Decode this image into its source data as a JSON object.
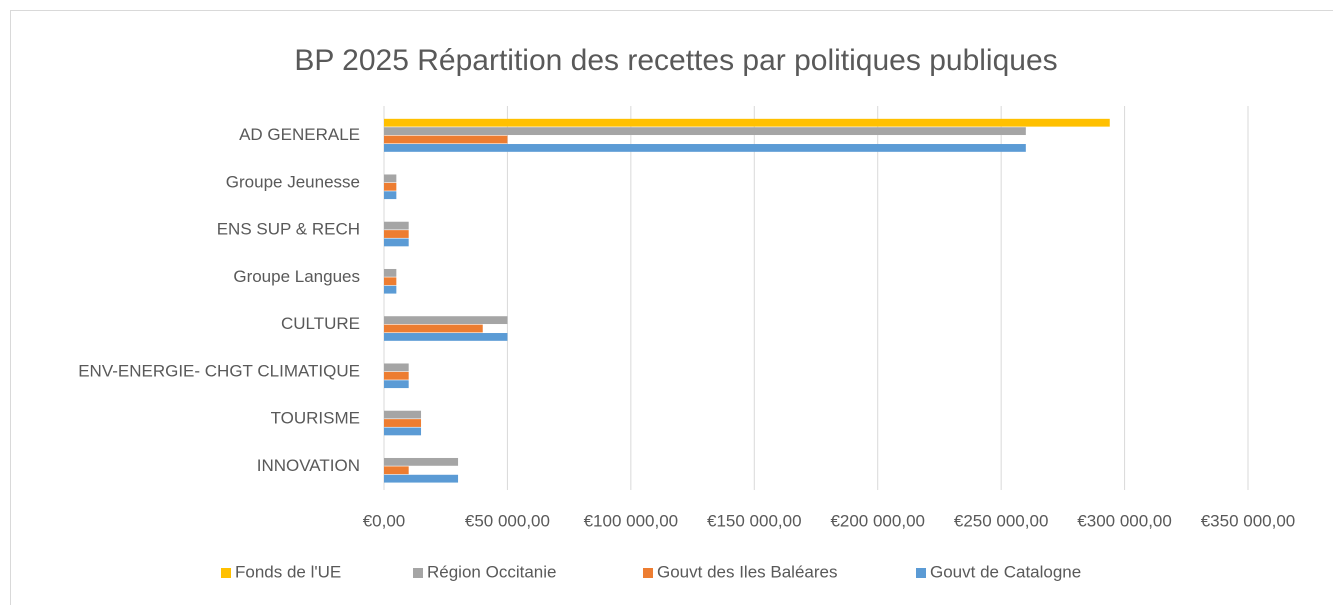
{
  "chart_data": {
    "type": "bar",
    "orientation": "horizontal",
    "title": "BP 2025 Répartition des recettes par politiques publiques",
    "categories": [
      "AD GENERALE",
      "Groupe Jeunesse",
      "ENS SUP & RECH",
      "Groupe Langues",
      "CULTURE",
      "ENV-ENERGIE- CHGT CLIMATIQUE",
      "TOURISME",
      "INNOVATION"
    ],
    "series": [
      {
        "name": "Fonds de l'UE",
        "color": "#ffc000",
        "values": [
          294000,
          0,
          0,
          0,
          0,
          0,
          0,
          0
        ]
      },
      {
        "name": "Région Occitanie",
        "color": "#a5a5a5",
        "values": [
          260000,
          5000,
          10000,
          5000,
          50000,
          10000,
          15000,
          30000
        ]
      },
      {
        "name": "Gouvt des Iles Baléares",
        "color": "#ed7d31",
        "values": [
          50000,
          5000,
          10000,
          5000,
          40000,
          10000,
          15000,
          10000
        ]
      },
      {
        "name": "Gouvt de  Catalogne",
        "color": "#5b9bd5",
        "values": [
          260000,
          5000,
          10000,
          5000,
          50000,
          10000,
          15000,
          30000
        ]
      }
    ],
    "xlim": [
      0,
      350000
    ],
    "xticks": [
      {
        "value": 0,
        "label": "€0,00"
      },
      {
        "value": 50000,
        "label": "€50 000,00"
      },
      {
        "value": 100000,
        "label": "€100 000,00"
      },
      {
        "value": 150000,
        "label": "€150 000,00"
      },
      {
        "value": 200000,
        "label": "€200 000,00"
      },
      {
        "value": 250000,
        "label": "€250 000,00"
      },
      {
        "value": 300000,
        "label": "€300 000,00"
      },
      {
        "value": 350000,
        "label": "€350 000,00"
      }
    ],
    "grid": true,
    "legend": "bottom"
  }
}
